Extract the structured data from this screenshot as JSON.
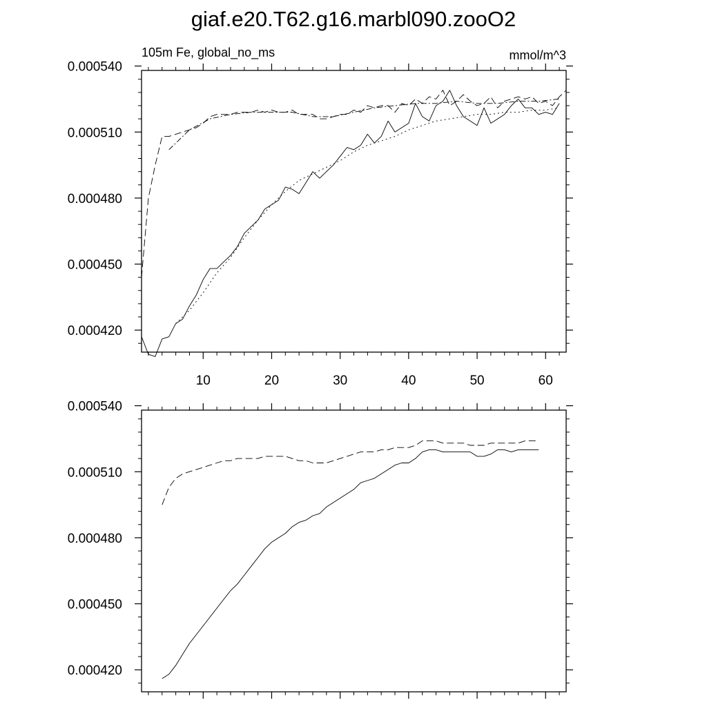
{
  "title": "giaf.e20.T62.g16.marbl090.zooO2",
  "chart_data": [
    {
      "type": "line",
      "left_label": "105m Fe, global_no_ms",
      "right_label": "mmol/m^3",
      "xlim": [
        1,
        63
      ],
      "ylim": [
        0.00041,
        0.000538
      ],
      "x_ticks": [
        10,
        20,
        30,
        40,
        50,
        60
      ],
      "x_tick_labels": [
        "10",
        "20",
        "30",
        "40",
        "50",
        "60"
      ],
      "y_ticks": [
        0.00042,
        0.00045,
        0.00048,
        0.00051,
        0.00054
      ],
      "y_tick_labels": [
        "0.000420",
        "0.000450",
        "0.000480",
        "0.000510",
        "0.000540"
      ],
      "series": [
        {
          "style": "solid",
          "x": [
            1,
            2,
            3,
            4,
            5,
            6,
            7,
            8,
            9,
            10,
            11,
            12,
            13,
            14,
            15,
            16,
            17,
            18,
            19,
            20,
            21,
            22,
            23,
            24,
            25,
            26,
            27,
            28,
            29,
            30,
            31,
            32,
            33,
            34,
            35,
            36,
            37,
            38,
            39,
            40,
            41,
            42,
            43,
            44,
            45,
            46,
            47,
            48,
            49,
            50,
            51,
            52,
            53,
            54,
            55,
            56,
            57,
            58,
            59,
            60,
            61,
            62
          ],
          "y": [
            0.000417,
            0.000409,
            0.000408,
            0.000416,
            0.000417,
            0.000423,
            0.000425,
            0.000431,
            0.000436,
            0.000443,
            0.000448,
            0.000448,
            0.000451,
            0.000454,
            0.000458,
            0.000464,
            0.000467,
            0.00047,
            0.000475,
            0.000477,
            0.000479,
            0.000485,
            0.000484,
            0.000482,
            0.000487,
            0.000492,
            0.000489,
            0.000492,
            0.000495,
            0.000499,
            0.000503,
            0.000502,
            0.000504,
            0.000509,
            0.000505,
            0.000508,
            0.000515,
            0.00051,
            0.000512,
            0.000514,
            0.000523,
            0.000517,
            0.000515,
            0.000522,
            0.000524,
            0.000529,
            0.000522,
            0.000517,
            0.000515,
            0.000513,
            0.000521,
            0.000514,
            0.000516,
            0.000518,
            0.000522,
            0.000525,
            0.000521,
            0.000521,
            0.000518,
            0.000519,
            0.000518,
            0.000523
          ]
        },
        {
          "style": "dashed",
          "x": [
            1,
            2,
            3,
            4,
            5,
            6,
            7,
            8,
            9,
            10,
            11,
            12,
            13,
            14,
            15,
            16,
            17,
            18,
            19,
            20,
            21,
            22,
            23,
            24,
            25,
            26,
            27,
            28,
            29,
            30,
            31,
            32,
            33,
            34,
            35,
            36,
            37,
            38,
            39,
            40,
            41,
            42,
            43,
            44,
            45,
            46,
            47,
            48,
            49,
            50,
            51,
            52,
            53,
            54,
            55,
            56,
            57,
            58,
            59,
            60,
            61,
            62,
            63
          ],
          "y": [
            0.000444,
            0.00048,
            0.000495,
            0.000508,
            0.000508,
            0.000509,
            0.00051,
            0.000511,
            0.000512,
            0.000514,
            0.000517,
            0.000518,
            0.000518,
            0.000518,
            0.000519,
            0.000519,
            0.000519,
            0.00052,
            0.000519,
            0.00052,
            0.000519,
            0.000519,
            0.00052,
            0.000518,
            0.000518,
            0.000518,
            0.000516,
            0.000516,
            0.000517,
            0.000518,
            0.000518,
            0.00052,
            0.000519,
            0.000522,
            0.000521,
            0.000522,
            0.000522,
            0.000519,
            0.000523,
            0.000522,
            0.000525,
            0.000523,
            0.000526,
            0.000525,
            0.000529,
            0.000522,
            0.000524,
            0.000527,
            0.000524,
            0.000522,
            0.000523,
            0.000526,
            0.000521,
            0.000524,
            0.000525,
            0.000526,
            0.000525,
            0.000526,
            0.000523,
            0.000524,
            0.000522,
            0.000526,
            0.000529
          ]
        },
        {
          "style": "dashdot",
          "x": [
            5,
            8,
            11,
            14,
            17,
            20,
            23,
            26,
            29,
            32,
            35,
            38,
            41,
            44,
            47,
            50,
            53,
            56,
            59,
            62
          ],
          "y": [
            0.000502,
            0.000511,
            0.000516,
            0.000518,
            0.000519,
            0.000519,
            0.000519,
            0.000517,
            0.000517,
            0.000519,
            0.000521,
            0.000522,
            0.000523,
            0.000523,
            0.000524,
            0.000523,
            0.000523,
            0.000524,
            0.000524,
            0.000525
          ]
        },
        {
          "style": "dotted",
          "x": [
            6,
            8,
            10,
            12,
            14,
            16,
            18,
            20,
            22,
            24,
            26,
            28,
            30,
            32,
            34,
            36,
            38,
            40,
            42,
            44,
            46,
            48,
            50,
            52,
            54,
            56,
            58,
            60,
            62
          ],
          "y": [
            0.000423,
            0.000429,
            0.000437,
            0.000446,
            0.000453,
            0.000462,
            0.00047,
            0.000477,
            0.000483,
            0.000488,
            0.000491,
            0.000494,
            0.000497,
            0.000501,
            0.000504,
            0.000506,
            0.000508,
            0.000511,
            0.000513,
            0.000515,
            0.000516,
            0.000517,
            0.000518,
            0.000518,
            0.000519,
            0.000519,
            0.00052,
            0.00052,
            0.000521
          ]
        }
      ]
    },
    {
      "type": "line",
      "xlim": [
        1,
        63
      ],
      "ylim": [
        0.00041,
        0.000538
      ],
      "x_ticks": [
        10,
        20,
        30,
        40,
        50,
        60
      ],
      "y_ticks": [
        0.00042,
        0.00045,
        0.00048,
        0.00051,
        0.00054
      ],
      "y_tick_labels": [
        "0.000420",
        "0.000450",
        "0.000480",
        "0.000510",
        "0.000540"
      ],
      "series": [
        {
          "style": "solid",
          "x": [
            4,
            5,
            6,
            7,
            8,
            9,
            10,
            11,
            12,
            13,
            14,
            15,
            16,
            17,
            18,
            19,
            20,
            21,
            22,
            23,
            24,
            25,
            26,
            27,
            28,
            29,
            30,
            31,
            32,
            33,
            34,
            35,
            36,
            37,
            38,
            39,
            40,
            41,
            42,
            43,
            44,
            45,
            46,
            47,
            48,
            49,
            50,
            51,
            52,
            53,
            54,
            55,
            56,
            57,
            58,
            59
          ],
          "y": [
            0.000416,
            0.000418,
            0.000422,
            0.000427,
            0.000432,
            0.000436,
            0.00044,
            0.000444,
            0.000448,
            0.000452,
            0.000456,
            0.000459,
            0.000463,
            0.000467,
            0.000471,
            0.000475,
            0.000478,
            0.00048,
            0.000482,
            0.000485,
            0.000487,
            0.000488,
            0.00049,
            0.000491,
            0.000494,
            0.000496,
            0.000498,
            0.0005,
            0.000502,
            0.000505,
            0.000506,
            0.000507,
            0.000509,
            0.000511,
            0.000513,
            0.000514,
            0.000514,
            0.000516,
            0.000519,
            0.00052,
            0.00052,
            0.000519,
            0.000519,
            0.000519,
            0.000519,
            0.000519,
            0.000517,
            0.000517,
            0.000518,
            0.00052,
            0.00052,
            0.000519,
            0.00052,
            0.00052,
            0.00052,
            0.00052
          ]
        },
        {
          "style": "dashed",
          "x": [
            4,
            5,
            6,
            7,
            8,
            9,
            10,
            11,
            12,
            13,
            14,
            15,
            16,
            17,
            18,
            19,
            20,
            21,
            22,
            23,
            24,
            25,
            26,
            27,
            28,
            29,
            30,
            31,
            32,
            33,
            34,
            35,
            36,
            37,
            38,
            39,
            40,
            41,
            42,
            43,
            44,
            45,
            46,
            47,
            48,
            49,
            50,
            51,
            52,
            53,
            54,
            55,
            56,
            57,
            58,
            59
          ],
          "y": [
            0.000495,
            0.000503,
            0.000507,
            0.000509,
            0.00051,
            0.000511,
            0.000512,
            0.000513,
            0.000514,
            0.000515,
            0.000515,
            0.000516,
            0.000516,
            0.000516,
            0.000516,
            0.000517,
            0.000517,
            0.000517,
            0.000517,
            0.000516,
            0.000515,
            0.000515,
            0.000514,
            0.000514,
            0.000514,
            0.000515,
            0.000516,
            0.000517,
            0.000518,
            0.000519,
            0.000519,
            0.000519,
            0.00052,
            0.00052,
            0.000521,
            0.000521,
            0.000521,
            0.000522,
            0.000524,
            0.000524,
            0.000524,
            0.000523,
            0.000523,
            0.000523,
            0.000523,
            0.000522,
            0.000522,
            0.000522,
            0.000523,
            0.000523,
            0.000523,
            0.000523,
            0.000523,
            0.000524,
            0.000524,
            0.000524
          ]
        }
      ]
    }
  ]
}
